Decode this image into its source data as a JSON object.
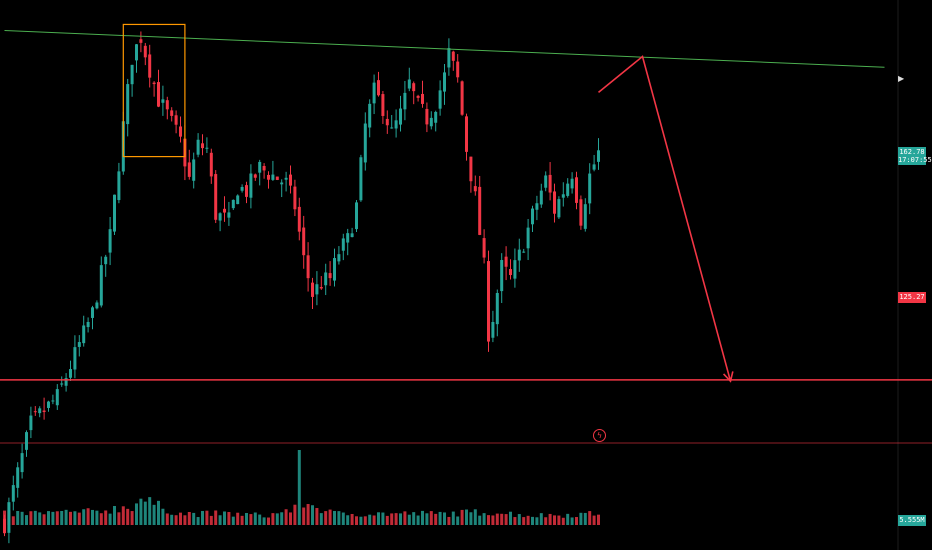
{
  "price_axis": {
    "last_price": "162.78",
    "countdown": "17:07:55",
    "support_level": "125.27",
    "volume_value": "5.555M",
    "scroll_marker": "▶"
  },
  "icons": {
    "event_marker": "lightning-icon"
  },
  "colors": {
    "background": "#000000",
    "up": "#26a69a",
    "down": "#f23645",
    "trendline": "#4caf50",
    "highlight_box": "#ff9800",
    "forecast_arrow": "#f23645"
  },
  "chart_data": {
    "type": "candlestick",
    "ylim": [
      103,
      175
    ],
    "support_price": 125.27,
    "resistance_trendline": [
      {
        "bar": 0,
        "price": 171.0
      },
      {
        "bar": 200,
        "price": 166.2
      }
    ],
    "highlight_box": {
      "bars": [
        27,
        41
      ],
      "price": [
        154.5,
        171.8
      ]
    },
    "forecast_path": [
      {
        "bar": 135,
        "price": 162.9
      },
      {
        "bar": 145,
        "price": 167.6
      },
      {
        "bar": 165,
        "price": 125.1
      }
    ],
    "close_path": [
      [
        0,
        106.5
      ],
      [
        6,
        119.5
      ],
      [
        12,
        123.0
      ],
      [
        16,
        128.5
      ],
      [
        20,
        134.0
      ],
      [
        24,
        144.0
      ],
      [
        27,
        158.5
      ],
      [
        29,
        167.5
      ],
      [
        31,
        170.2
      ],
      [
        33,
        166.0
      ],
      [
        35,
        162.0
      ],
      [
        37,
        160.0
      ],
      [
        40,
        156.5
      ],
      [
        42,
        151.5
      ],
      [
        44,
        156.0
      ],
      [
        46,
        155.5
      ],
      [
        48,
        147.0
      ],
      [
        51,
        146.0
      ],
      [
        53,
        150.5
      ],
      [
        55,
        150.0
      ],
      [
        58,
        153.0
      ],
      [
        61,
        152.0
      ],
      [
        64,
        151.0
      ],
      [
        66,
        148.0
      ],
      [
        68,
        141.0
      ],
      [
        70,
        136.5
      ],
      [
        72,
        138.0
      ],
      [
        74,
        138.5
      ],
      [
        76,
        142.0
      ],
      [
        78,
        143.5
      ],
      [
        80,
        148.0
      ],
      [
        82,
        158.5
      ],
      [
        84,
        163.0
      ],
      [
        86,
        161.0
      ],
      [
        88,
        157.5
      ],
      [
        90,
        160.0
      ],
      [
        92,
        164.0
      ],
      [
        94,
        161.0
      ],
      [
        96,
        159.5
      ],
      [
        98,
        161.5
      ],
      [
        100,
        165.0
      ],
      [
        101,
        168.0
      ],
      [
        103,
        164.5
      ],
      [
        105,
        155.5
      ],
      [
        107,
        149.0
      ],
      [
        109,
        140.0
      ],
      [
        110,
        131.5
      ],
      [
        111,
        133.5
      ],
      [
        113,
        140.0
      ],
      [
        115,
        138.5
      ],
      [
        117,
        141.5
      ],
      [
        119,
        145.0
      ],
      [
        121,
        148.5
      ],
      [
        123,
        151.5
      ],
      [
        125,
        147.5
      ],
      [
        127,
        150.0
      ],
      [
        129,
        152.5
      ],
      [
        131,
        146.5
      ],
      [
        133,
        152.0
      ],
      [
        135,
        155.0
      ]
    ],
    "volume_path": [
      [
        0,
        6
      ],
      [
        20,
        7
      ],
      [
        29,
        10
      ],
      [
        31,
        14
      ],
      [
        35,
        10
      ],
      [
        40,
        6
      ],
      [
        50,
        6
      ],
      [
        60,
        5
      ],
      [
        66,
        9
      ],
      [
        67,
        38
      ],
      [
        68,
        12
      ],
      [
        75,
        6
      ],
      [
        90,
        6
      ],
      [
        100,
        6
      ],
      [
        110,
        7
      ],
      [
        120,
        5
      ],
      [
        135,
        6
      ]
    ],
    "volume_max": 40
  }
}
